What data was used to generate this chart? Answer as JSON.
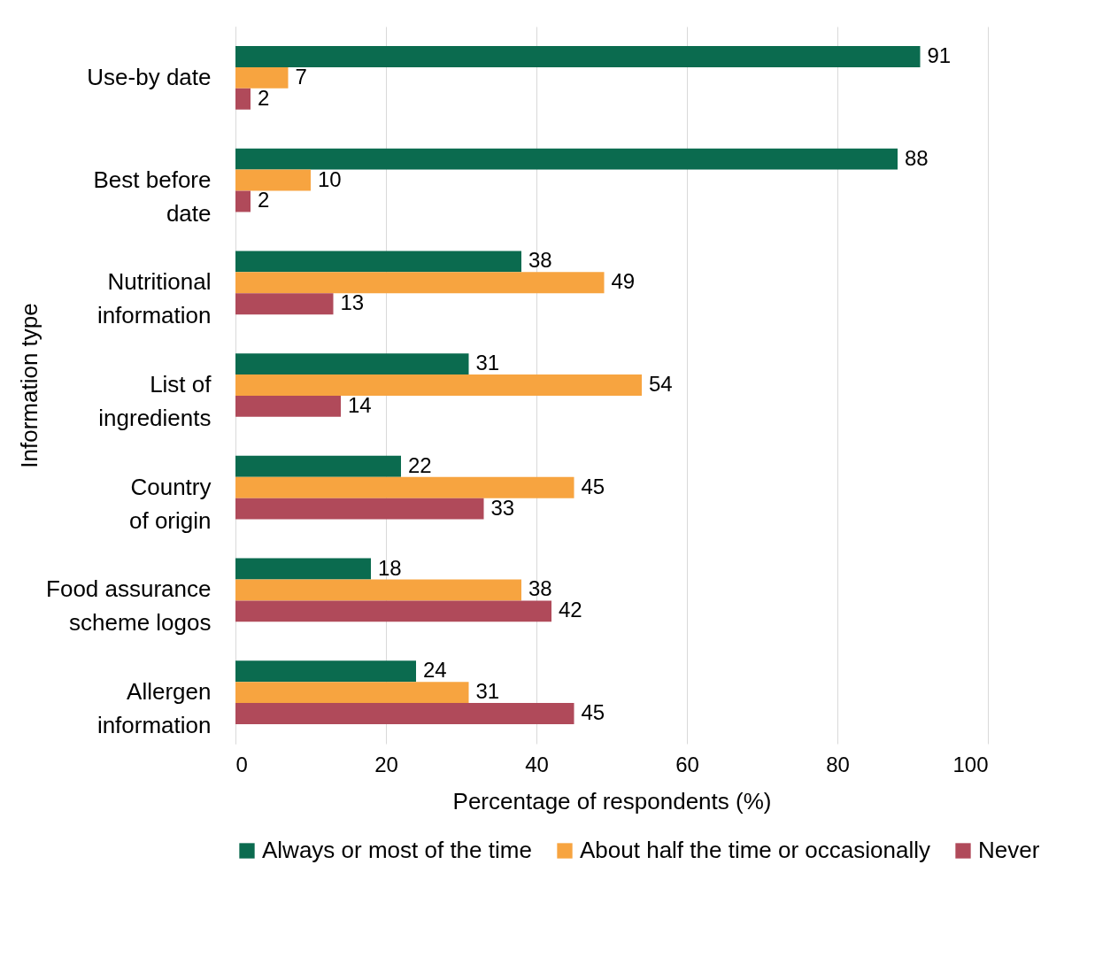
{
  "chart_data": {
    "type": "bar",
    "orientation": "horizontal",
    "xlabel": "Percentage of respondents (%)",
    "ylabel": "Information type",
    "categories": [
      "Use-by date",
      "Best before date",
      "Nutritional information",
      "List of ingredients",
      "Country of origin",
      "Food assurance scheme logos",
      "Allergen information"
    ],
    "series": [
      {
        "name": "Always or most of the time",
        "color": "#0b6b4f",
        "values": [
          91,
          88,
          38,
          31,
          22,
          18,
          24
        ]
      },
      {
        "name": "About half the time or occasionally",
        "color": "#f7a440",
        "values": [
          7,
          10,
          49,
          54,
          45,
          38,
          31
        ]
      },
      {
        "name": "Never",
        "color": "#b04a5a",
        "values": [
          2,
          2,
          13,
          14,
          33,
          42,
          45
        ]
      }
    ],
    "xlim": [
      0,
      100
    ],
    "xticks": [
      0,
      20,
      40,
      60,
      80,
      100
    ],
    "grid": "x",
    "legend": "bottom",
    "data_labels": true
  }
}
